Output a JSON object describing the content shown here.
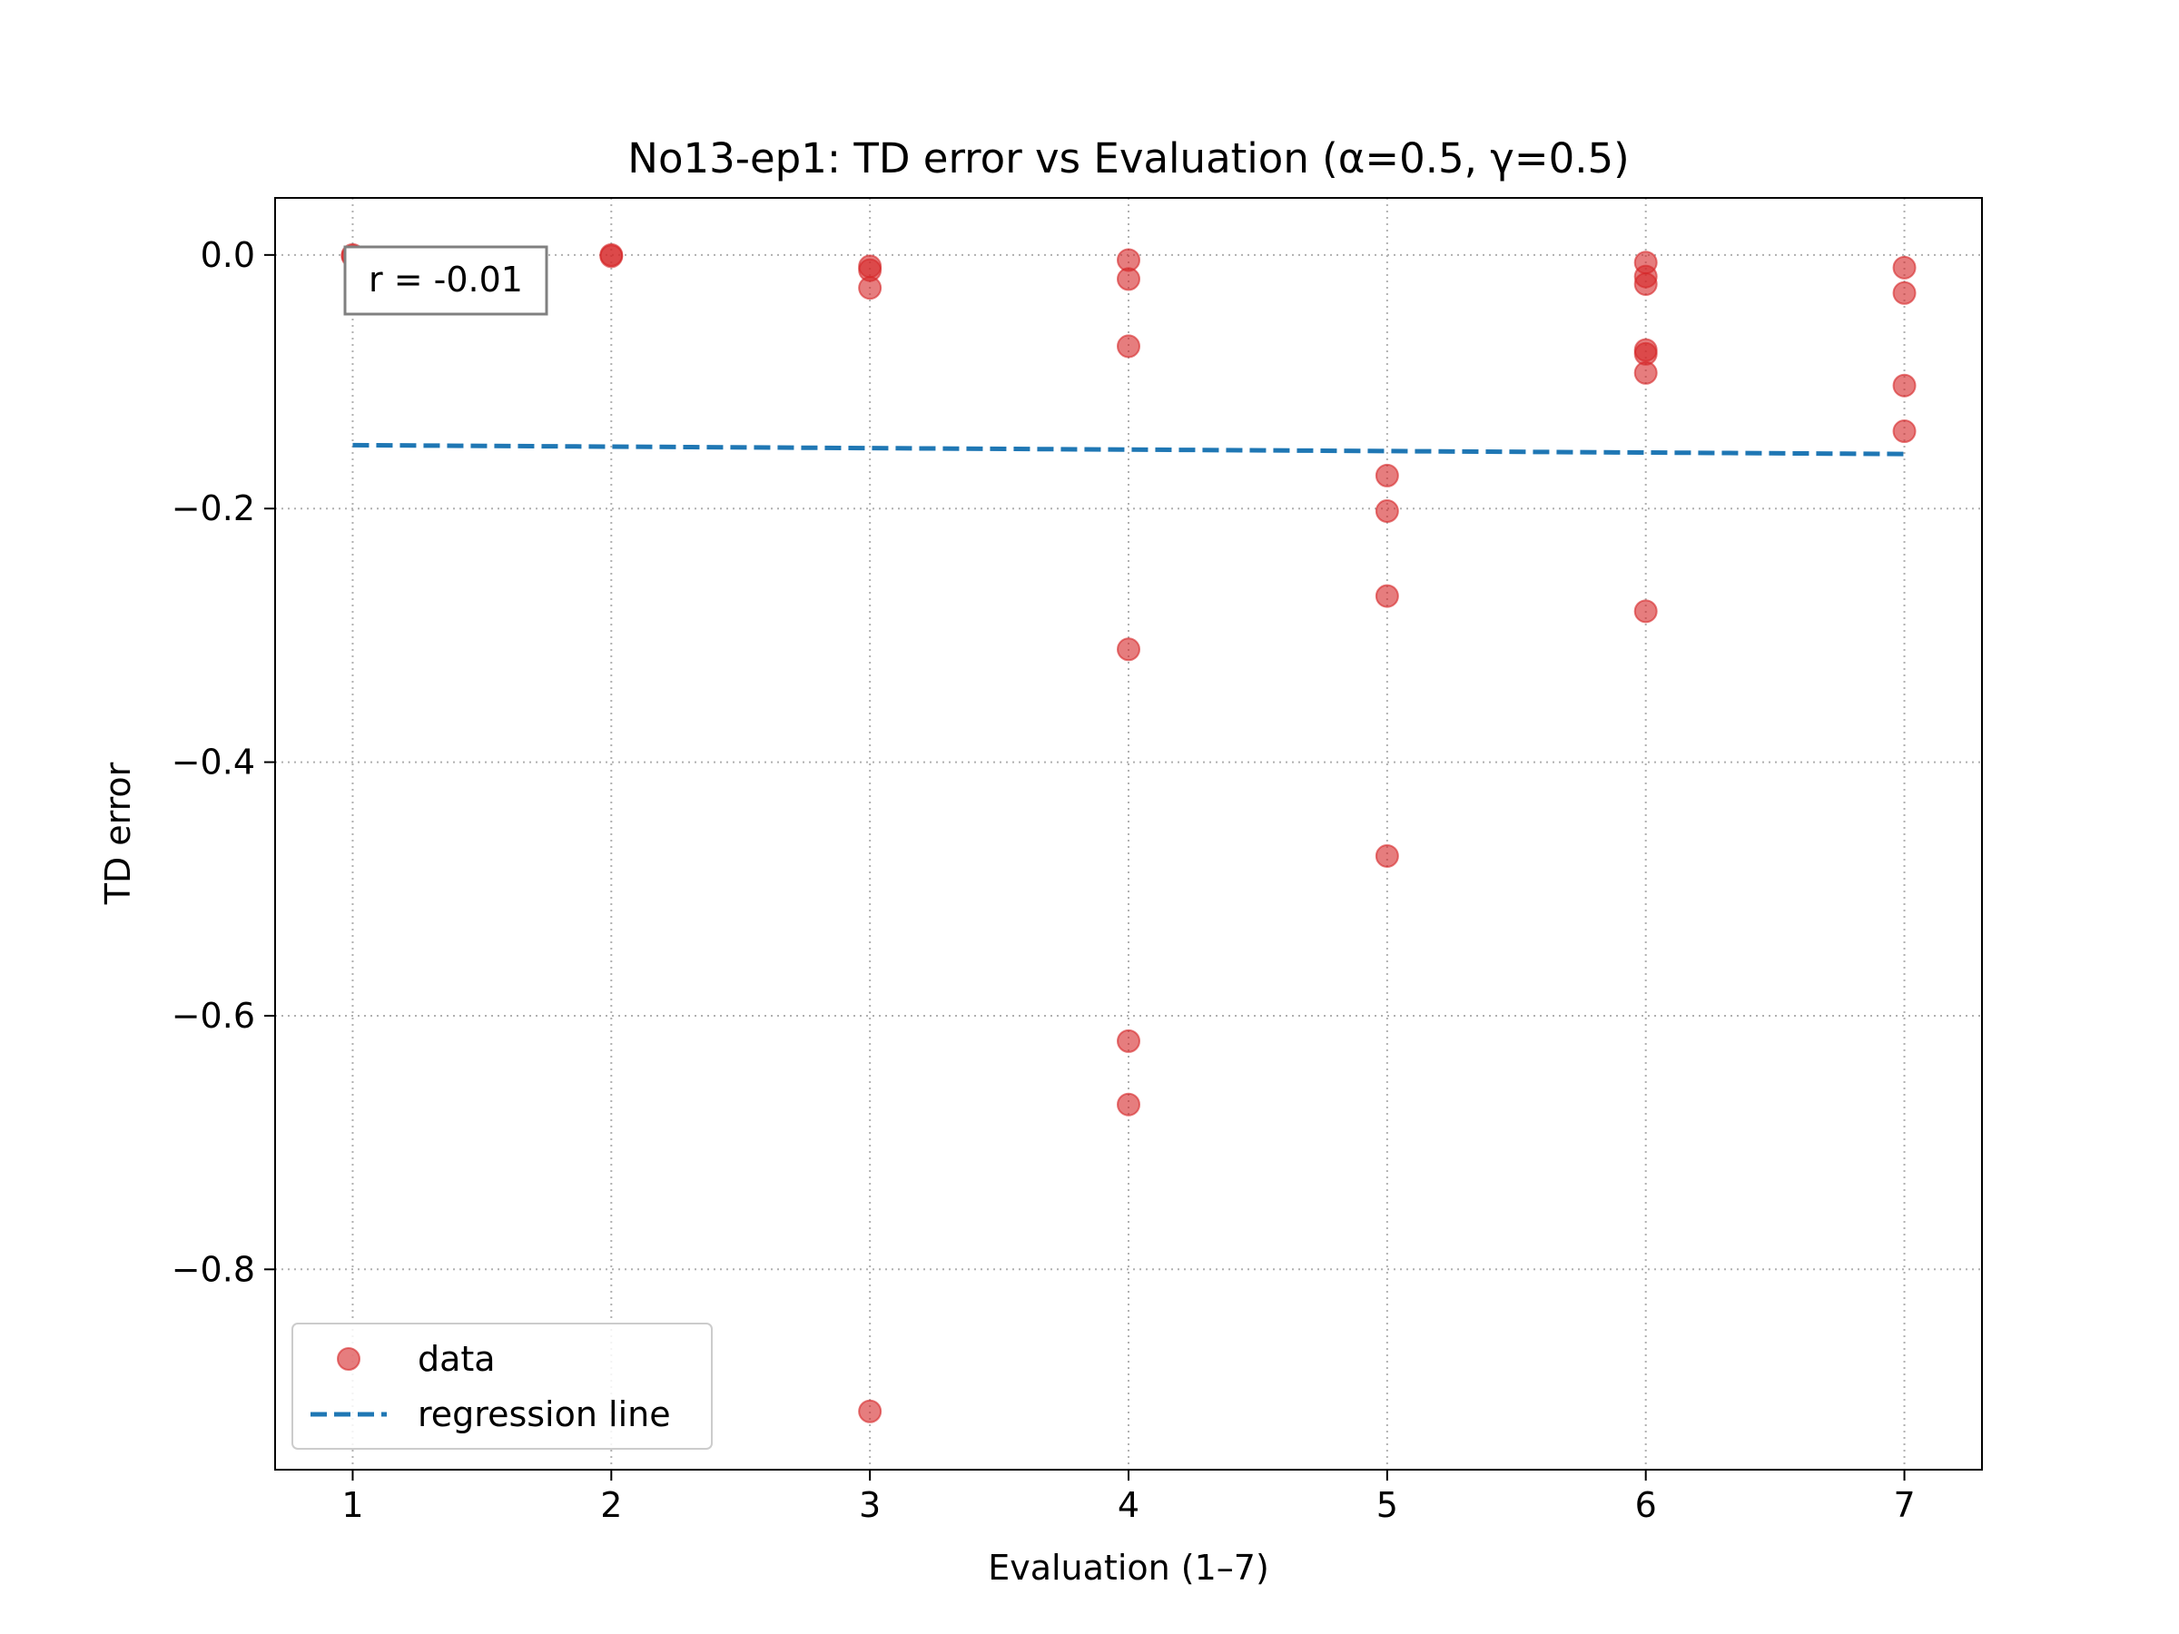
{
  "chart_data": {
    "type": "scatter",
    "title": "No13-ep1: TD error vs Evaluation (α=0.5, γ=0.5)",
    "xlabel": "Evaluation (1–7)",
    "ylabel": "TD error",
    "xlim": [
      0.7,
      7.3
    ],
    "ylim": [
      -0.958,
      0.045
    ],
    "xticks": [
      1,
      2,
      3,
      4,
      5,
      6,
      7
    ],
    "yticks": [
      0.0,
      -0.2,
      -0.4,
      -0.6,
      -0.8
    ],
    "xtick_labels": [
      "1",
      "2",
      "3",
      "4",
      "5",
      "6",
      "7"
    ],
    "ytick_labels": [
      "0.0",
      "−0.2",
      "−0.4",
      "−0.6",
      "−0.8"
    ],
    "grid": true,
    "legend_position": "lower-left",
    "annotation": "r = -0.01",
    "colors": {
      "data": "#d62728",
      "regression": "#1f77b4"
    },
    "series": [
      {
        "name": "data",
        "kind": "scatter",
        "points": [
          {
            "x": 1,
            "y": 0.0
          },
          {
            "x": 1,
            "y": -0.001
          },
          {
            "x": 2,
            "y": 0.0
          },
          {
            "x": 2,
            "y": -0.001
          },
          {
            "x": 3,
            "y": -0.009
          },
          {
            "x": 3,
            "y": -0.012
          },
          {
            "x": 3,
            "y": -0.026
          },
          {
            "x": 3,
            "y": -0.912
          },
          {
            "x": 4,
            "y": -0.004
          },
          {
            "x": 4,
            "y": -0.019
          },
          {
            "x": 4,
            "y": -0.072
          },
          {
            "x": 4,
            "y": -0.311
          },
          {
            "x": 4,
            "y": -0.62
          },
          {
            "x": 4,
            "y": -0.67
          },
          {
            "x": 5,
            "y": -0.174
          },
          {
            "x": 5,
            "y": -0.202
          },
          {
            "x": 5,
            "y": -0.269
          },
          {
            "x": 5,
            "y": -0.474
          },
          {
            "x": 6,
            "y": -0.006
          },
          {
            "x": 6,
            "y": -0.017
          },
          {
            "x": 6,
            "y": -0.023
          },
          {
            "x": 6,
            "y": -0.075
          },
          {
            "x": 6,
            "y": -0.078
          },
          {
            "x": 6,
            "y": -0.093
          },
          {
            "x": 6,
            "y": -0.281
          },
          {
            "x": 7,
            "y": -0.01
          },
          {
            "x": 7,
            "y": -0.03
          },
          {
            "x": 7,
            "y": -0.103
          },
          {
            "x": 7,
            "y": -0.139
          }
        ]
      },
      {
        "name": "regression line",
        "kind": "line",
        "points": [
          {
            "x": 1,
            "y": -0.15
          },
          {
            "x": 7,
            "y": -0.157
          }
        ]
      }
    ]
  }
}
